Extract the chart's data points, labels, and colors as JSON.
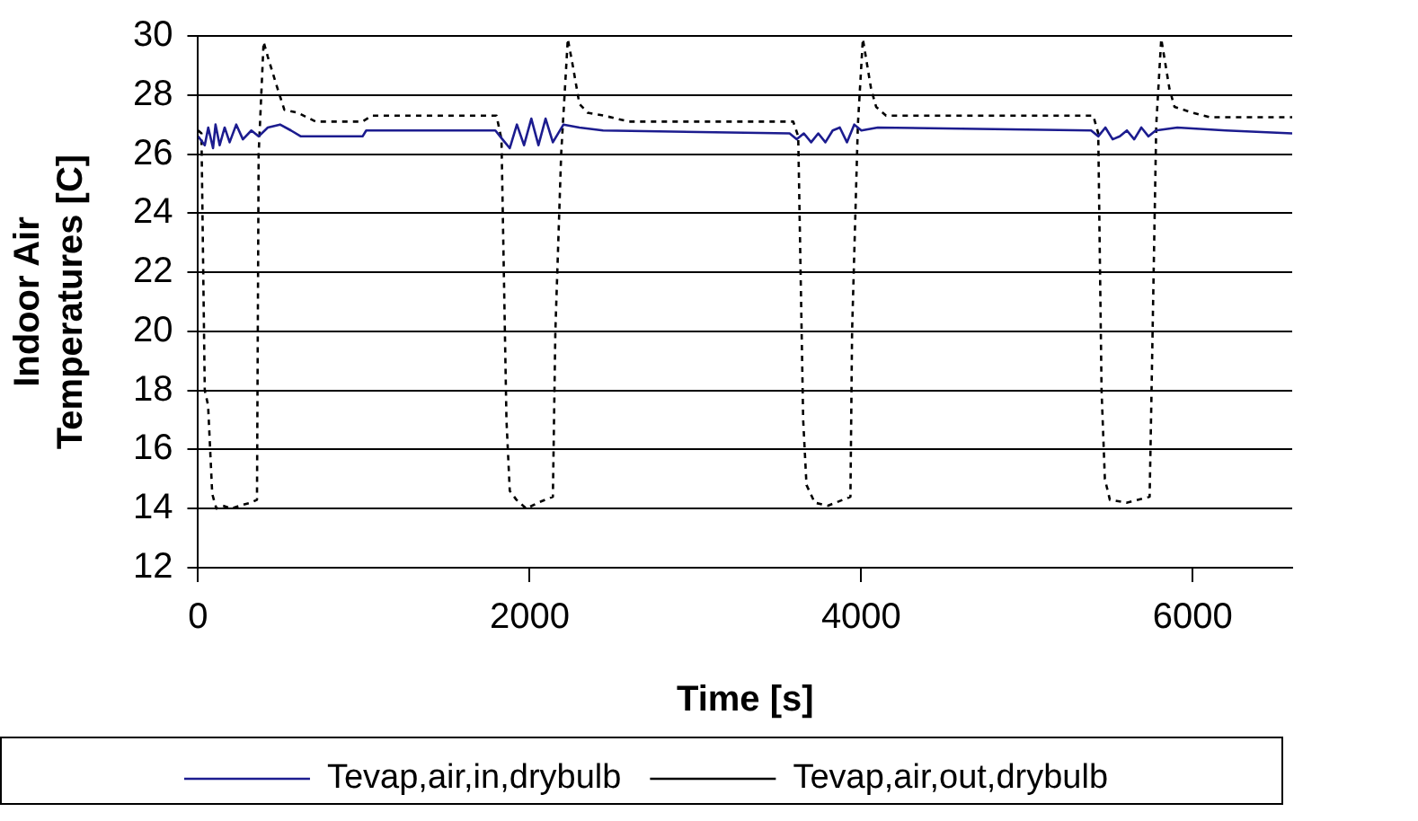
{
  "chart_data": {
    "type": "line",
    "xlabel": "Time [s]",
    "ylabel": "Indoor Air Temperatures [C]",
    "xlim": [
      0,
      6600
    ],
    "xticks": [
      0,
      2000,
      4000,
      6000
    ],
    "ylim": [
      12,
      30
    ],
    "yticks": [
      12,
      14,
      16,
      18,
      20,
      22,
      24,
      26,
      28,
      30
    ],
    "grid": "y",
    "legend": "bottom",
    "marker": "none",
    "series": [
      {
        "name": "Tevap,air,in,drybulb",
        "color": "#1c1c8f",
        "line_style": "solid",
        "x": [
          0,
          40,
          61,
          90,
          105,
          130,
          160,
          190,
          230,
          270,
          321,
          365,
          420,
          494,
          560,
          620,
          700,
          992,
          1014,
          1793,
          1836,
          1880,
          1923,
          1966,
          2010,
          2053,
          2096,
          2140,
          2204,
          2300,
          2443,
          3568,
          3611,
          3654,
          3698,
          3741,
          3784,
          3828,
          3871,
          3914,
          3958,
          4001,
          4100,
          5387,
          5430,
          5473,
          5517,
          5560,
          5603,
          5647,
          5690,
          5733,
          5777,
          5907,
          6200,
          6600
        ],
        "values": [
          26.6,
          26.3,
          26.9,
          26.2,
          27.0,
          26.3,
          26.9,
          26.4,
          27.0,
          26.5,
          26.8,
          26.6,
          26.9,
          27.0,
          26.8,
          26.6,
          26.6,
          26.6,
          26.8,
          26.8,
          26.5,
          26.2,
          27.0,
          26.3,
          27.2,
          26.3,
          27.2,
          26.4,
          27.0,
          26.9,
          26.8,
          26.7,
          26.5,
          26.7,
          26.4,
          26.7,
          26.4,
          26.8,
          26.9,
          26.4,
          27.0,
          26.8,
          26.9,
          26.8,
          26.6,
          26.9,
          26.5,
          26.6,
          26.8,
          26.5,
          26.9,
          26.6,
          26.8,
          26.9,
          26.8,
          26.7
        ]
      },
      {
        "name": "Tevap,air,out,drybulb",
        "color": "#000000",
        "line_style": "dotted",
        "x": [
          0,
          20,
          40,
          60,
          85,
          110,
          150,
          200,
          250,
          320,
          355,
          365,
          395,
          420,
          480,
          520,
          600,
          710,
          990,
          1050,
          1800,
          1830,
          1860,
          1880,
          1920,
          1980,
          2050,
          2140,
          2155,
          2190,
          2230,
          2260,
          2300,
          2350,
          2450,
          2600,
          3590,
          3620,
          3650,
          3670,
          3720,
          3800,
          3935,
          3945,
          3980,
          4010,
          4060,
          4090,
          4150,
          5400,
          5430,
          5450,
          5470,
          5500,
          5600,
          5740,
          5750,
          5780,
          5810,
          5860,
          5890,
          6000,
          6100,
          6600
        ],
        "values": [
          26.8,
          26.7,
          18,
          17.5,
          14.5,
          14.0,
          14.1,
          14.0,
          14.1,
          14.2,
          14.3,
          26,
          29.8,
          29.3,
          28.2,
          27.5,
          27.4,
          27.1,
          27.1,
          27.3,
          27.3,
          26.5,
          17,
          14.6,
          14.3,
          14.0,
          14.2,
          14.4,
          20,
          26,
          29.9,
          29.0,
          27.7,
          27.4,
          27.3,
          27.1,
          27.1,
          26.6,
          17,
          14.8,
          14.2,
          14.1,
          14.4,
          20,
          27,
          29.9,
          28.2,
          27.6,
          27.3,
          27.3,
          26.7,
          18,
          15,
          14.3,
          14.2,
          14.4,
          17.5,
          27,
          29.9,
          28.2,
          27.6,
          27.4,
          27.25,
          27.25
        ]
      }
    ]
  }
}
